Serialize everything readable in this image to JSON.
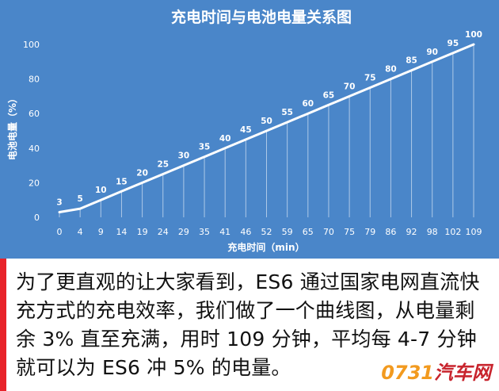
{
  "chart_data": {
    "type": "line",
    "title": "充电时间与电池电量关系图",
    "xlabel": "充电时间（min）",
    "ylabel": "电池电量（%）",
    "ylim": [
      0,
      100
    ],
    "yticks": [
      0,
      20,
      40,
      60,
      80,
      100
    ],
    "x": [
      "0",
      "4",
      "9",
      "14",
      "19",
      "24",
      "29",
      "35",
      "41",
      "46",
      "52",
      "59",
      "65",
      "70",
      "75",
      "79",
      "86",
      "92",
      "98",
      "102",
      "109"
    ],
    "values": [
      3,
      5,
      10,
      15,
      20,
      25,
      30,
      35,
      40,
      45,
      50,
      55,
      60,
      65,
      70,
      75,
      80,
      85,
      90,
      95,
      100
    ],
    "grid": false,
    "drop_lines": true,
    "colors": {
      "background": "#4a86c9",
      "line": "#ffffff",
      "text": "#ffffff"
    }
  },
  "caption": {
    "text": "为了更直观的让大家看到，ES6 通过国家电网直流快充方式的充电效率，我们做了一个曲线图，从电量剩余 3% 直至充满，用时 109 分钟，平均每 4-7 分钟就可以为 ES6 冲 5% 的电量。",
    "accent_color": "#e8232a"
  },
  "watermark": {
    "num": "0731",
    "cn": "汽车网"
  }
}
